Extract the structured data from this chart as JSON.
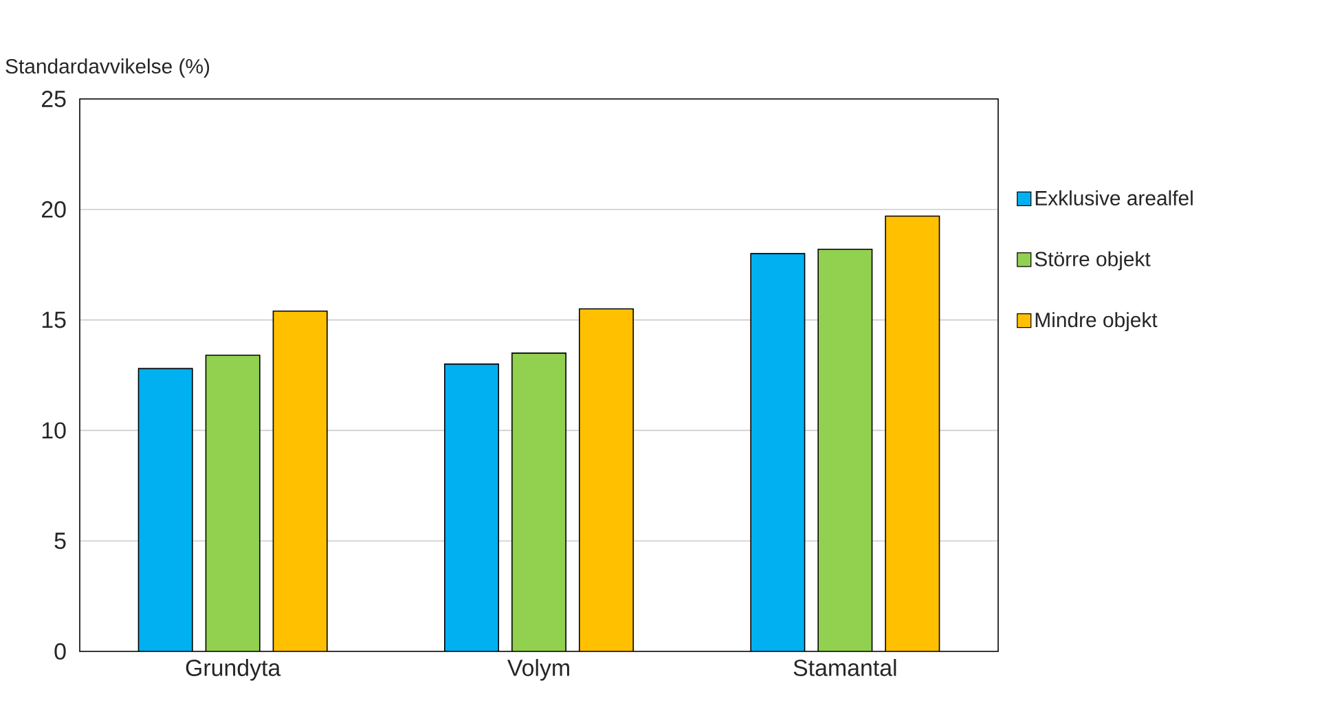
{
  "chart_data": {
    "type": "bar",
    "ylabel": "Standardavvikelse (%)",
    "categories": [
      "Grundyta",
      "Volym",
      "Stamantal"
    ],
    "series": [
      {
        "name": "Exklusive arealfel",
        "color": "#00b0f0",
        "values": [
          12.8,
          13.0,
          18.0
        ]
      },
      {
        "name": "Större objekt",
        "color": "#92d050",
        "values": [
          13.4,
          13.5,
          18.2
        ]
      },
      {
        "name": "Mindre objekt",
        "color": "#ffc000",
        "values": [
          15.4,
          15.5,
          19.7
        ]
      }
    ],
    "ylim": [
      0,
      25
    ],
    "yticks": [
      0,
      5,
      10,
      15,
      20,
      25
    ],
    "grid": "y",
    "legend": "right"
  }
}
